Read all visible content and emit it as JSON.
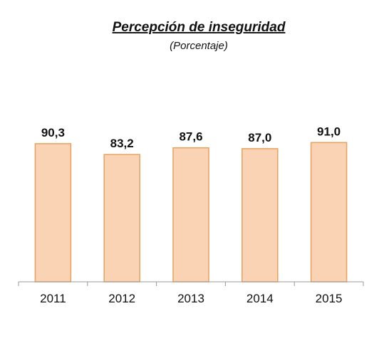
{
  "chart_data": {
    "type": "bar",
    "title": "Percepción de inseguridad",
    "subtitle": "(Porcentaje)",
    "categories": [
      "2011",
      "2012",
      "2013",
      "2014",
      "2015"
    ],
    "values": [
      90.3,
      83.2,
      87.6,
      87.0,
      91.0
    ],
    "data_labels": [
      "90,3",
      "83,2",
      "87,6",
      "87,0",
      "91,0"
    ],
    "xlabel": "",
    "ylabel": "",
    "ylim": [
      0,
      100
    ],
    "grid": false,
    "legend": "none",
    "colors": {
      "bar_fill": "#FAD2B4",
      "bar_stroke": "#E8A25E",
      "axis": "#9A9A9A",
      "text": "#111111"
    }
  }
}
